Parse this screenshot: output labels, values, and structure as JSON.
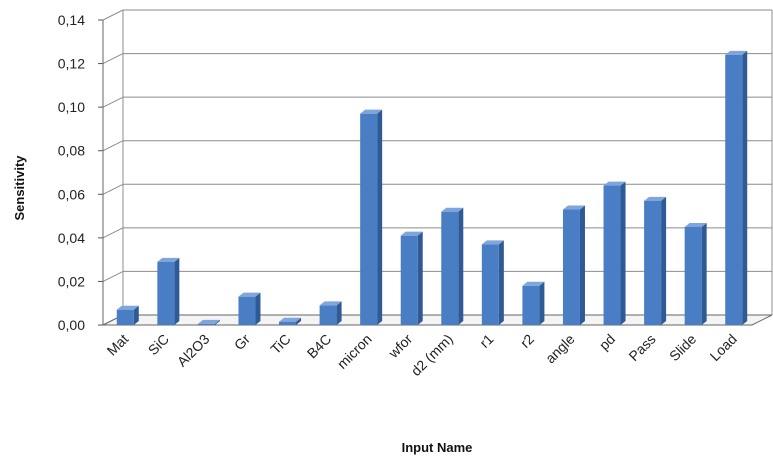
{
  "chart_data": {
    "type": "bar",
    "title": "",
    "xlabel": "Input Name",
    "ylabel": "Sensitivity",
    "ylim": [
      0,
      0.14
    ],
    "yticks": [
      0.0,
      0.02,
      0.04,
      0.06,
      0.08,
      0.1,
      0.12,
      0.14
    ],
    "ytick_labels": [
      "0,00",
      "0,02",
      "0,04",
      "0,06",
      "0,08",
      "0,10",
      "0,12",
      "0,14"
    ],
    "grid": true,
    "legend": "none",
    "style": "3d-column",
    "colors": {
      "bar_front": "#4a7ec4",
      "bar_side": "#2e5a96",
      "bar_top": "#7ea6dc",
      "grid": "#8c8c8c",
      "wall": "#ffffff"
    },
    "categories": [
      "Mat",
      "SiC",
      "Al2O3",
      "Gr",
      "TiC",
      "B4C",
      "micron",
      "wfor",
      "d2 (mm)",
      "r1",
      "r2",
      "angle",
      "pd",
      "Pass",
      "Slide",
      "Load"
    ],
    "values": [
      0.007,
      0.029,
      0.0005,
      0.013,
      0.0015,
      0.009,
      0.097,
      0.041,
      0.052,
      0.037,
      0.018,
      0.053,
      0.064,
      0.057,
      0.045,
      0.124
    ]
  }
}
